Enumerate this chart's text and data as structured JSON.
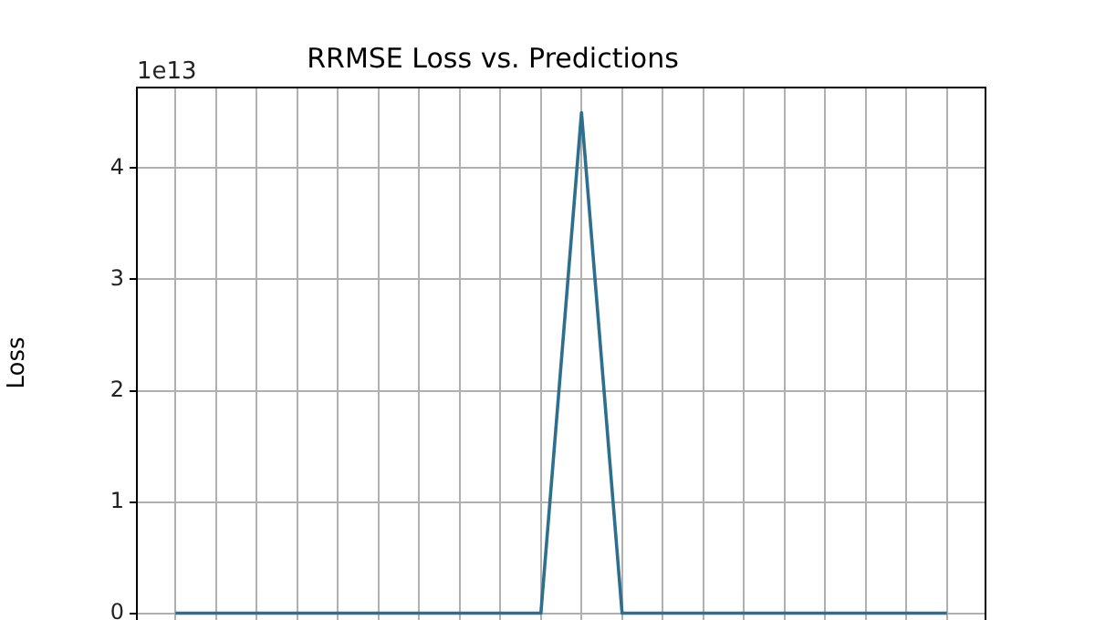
{
  "chart_data": {
    "type": "line",
    "title": "RRMSE Loss vs. Predictions",
    "ylabel": "Loss",
    "categories": [
      null,
      null,
      null,
      null,
      null,
      null,
      null,
      null,
      null,
      null,
      null,
      null,
      null,
      null,
      null,
      null,
      null,
      null,
      null,
      null
    ],
    "series": [
      {
        "color": "#2e6f8e",
        "values": [
          0,
          0,
          0,
          0,
          0,
          0,
          0,
          0,
          0,
          0,
          4.5,
          0,
          0,
          0,
          0,
          0,
          0,
          0,
          0,
          0
        ]
      }
    ],
    "ylim": [
      -0.225,
      4.725
    ],
    "yticks": [
      0,
      1,
      2,
      3,
      4
    ],
    "annotations": [
      "1e13"
    ],
    "tick_labels": "y",
    "grid": true,
    "marker": "none",
    "line_style": "solid"
  }
}
